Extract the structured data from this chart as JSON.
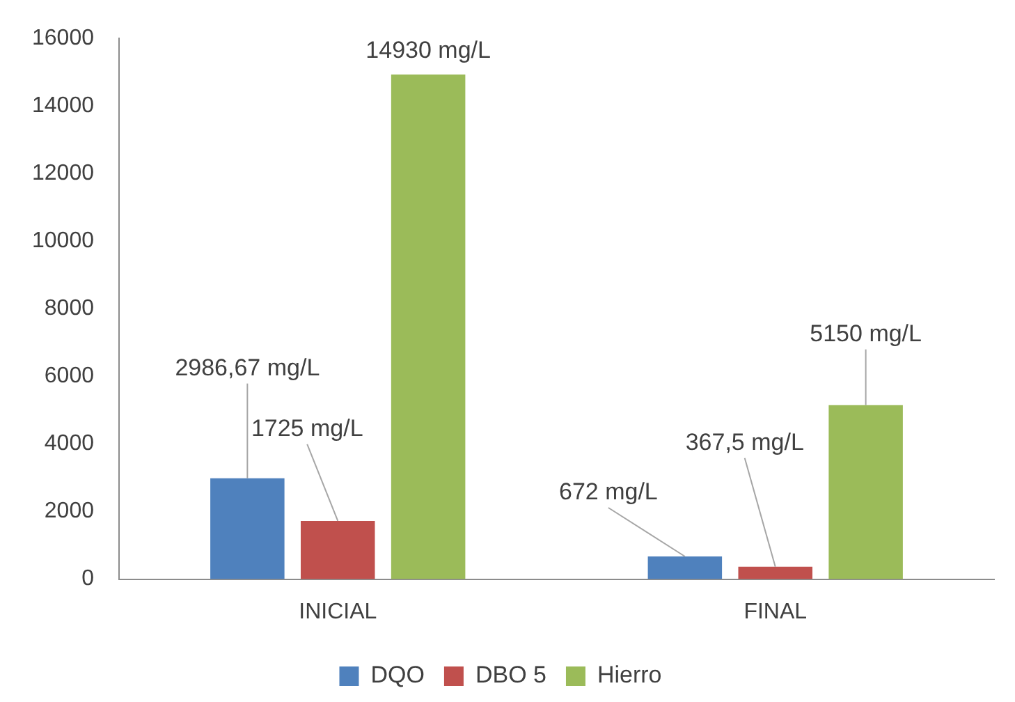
{
  "chart_data": {
    "type": "bar",
    "categories": [
      "INICIAL",
      "FINAL"
    ],
    "series": [
      {
        "name": "DQO",
        "color": "#4f81bd",
        "values": [
          2986.67,
          672
        ],
        "value_labels": [
          "2986,67 mg/L",
          "672 mg/L"
        ]
      },
      {
        "name": "DBO 5",
        "color": "#c0504d",
        "values": [
          1725,
          367.5
        ],
        "value_labels": [
          "1725 mg/L",
          "367,5 mg/L"
        ]
      },
      {
        "name": "Hierro",
        "color": "#9bbb59",
        "values": [
          14930,
          5150
        ],
        "value_labels": [
          "14930 mg/L",
          "5150 mg/L"
        ]
      }
    ],
    "ylim": [
      0,
      16000
    ],
    "yticks": [
      0,
      2000,
      4000,
      6000,
      8000,
      10000,
      12000,
      14000,
      16000
    ],
    "grid": false,
    "legend": "bottom"
  }
}
